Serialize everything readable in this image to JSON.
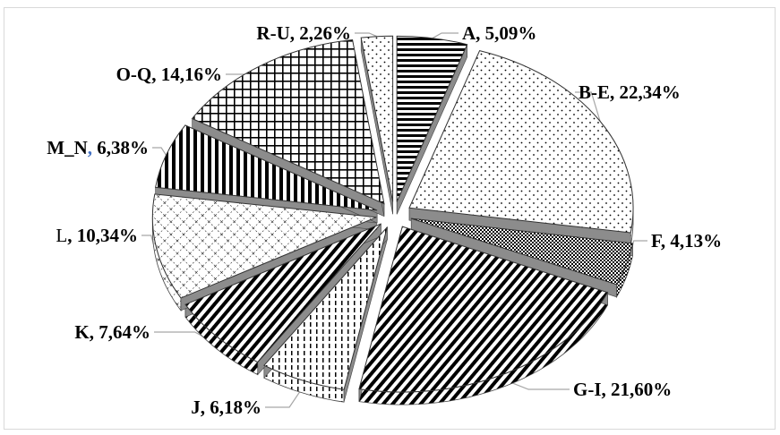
{
  "chart_data": {
    "type": "pie",
    "style": "3D exploded pie with black-and-white hatch patterns",
    "categories": [
      "A",
      "B-E",
      "F",
      "G-I",
      "J",
      "K",
      "L",
      "M_N",
      "O-Q",
      "R-U"
    ],
    "values": [
      5.09,
      22.34,
      4.13,
      21.6,
      6.18,
      7.64,
      10.34,
      6.38,
      14.16,
      2.26
    ],
    "unit": "%",
    "slices": [
      {
        "name": "A",
        "value": 5.09,
        "pct_label": "5,09%",
        "pattern": "horizontal-lines"
      },
      {
        "name": "B-E",
        "value": 22.34,
        "pct_label": "22,34%",
        "pattern": "dots"
      },
      {
        "name": "F",
        "value": 4.13,
        "pct_label": "4,13%",
        "pattern": "checker"
      },
      {
        "name": "G-I",
        "value": 21.6,
        "pct_label": "21,60%",
        "pattern": "diagonal-lines"
      },
      {
        "name": "J",
        "value": 6.18,
        "pct_label": "6,18%",
        "pattern": "dashed-vertical"
      },
      {
        "name": "K",
        "value": 7.64,
        "pct_label": "7,64%",
        "pattern": "diagonal-lines"
      },
      {
        "name": "L",
        "value": 10.34,
        "pct_label": "10,34%",
        "pattern": "dashed-grid"
      },
      {
        "name": "M_N",
        "value": 6.38,
        "pct_label": "6,38%",
        "pattern": "vertical-lines"
      },
      {
        "name": "O-Q",
        "value": 14.16,
        "pct_label": "14,16%",
        "pattern": "grid"
      },
      {
        "name": "R-U",
        "value": 2.26,
        "pct_label": "2,26%",
        "pattern": "dots"
      }
    ],
    "colors": {
      "fill": "#ffffff",
      "ink": "#000000",
      "edge": "#444444",
      "leader": "#a6a6a6",
      "border": "#d9d9d9"
    }
  }
}
